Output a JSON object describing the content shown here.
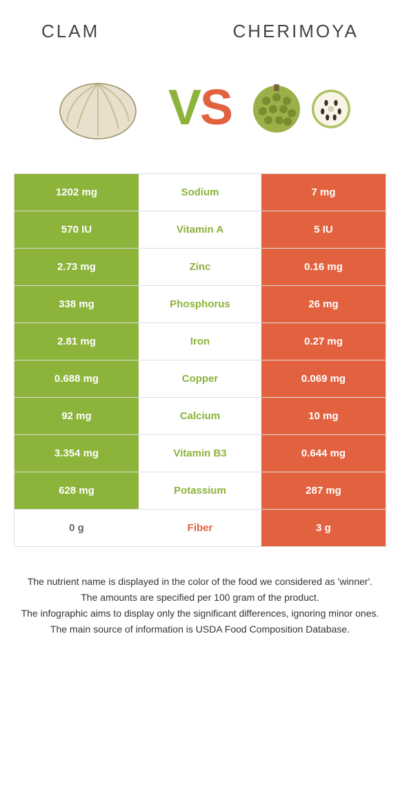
{
  "titles": {
    "left": "CLAM",
    "right": "CHERIMOYA"
  },
  "vs": {
    "v": "V",
    "s": "S"
  },
  "colors": {
    "left": "#8cb33a",
    "right": "#e2623f",
    "neutral_text": "#666"
  },
  "rows": [
    {
      "nutrient": "Sodium",
      "left": "1202 mg",
      "right": "7 mg",
      "winner": "left"
    },
    {
      "nutrient": "Vitamin A",
      "left": "570 IU",
      "right": "5 IU",
      "winner": "left"
    },
    {
      "nutrient": "Zinc",
      "left": "2.73 mg",
      "right": "0.16 mg",
      "winner": "left"
    },
    {
      "nutrient": "Phosphorus",
      "left": "338 mg",
      "right": "26 mg",
      "winner": "left"
    },
    {
      "nutrient": "Iron",
      "left": "2.81 mg",
      "right": "0.27 mg",
      "winner": "left"
    },
    {
      "nutrient": "Copper",
      "left": "0.688 mg",
      "right": "0.069 mg",
      "winner": "left"
    },
    {
      "nutrient": "Calcium",
      "left": "92 mg",
      "right": "10 mg",
      "winner": "left"
    },
    {
      "nutrient": "Vitamin B3",
      "left": "3.354 mg",
      "right": "0.644 mg",
      "winner": "left"
    },
    {
      "nutrient": "Potassium",
      "left": "628 mg",
      "right": "287 mg",
      "winner": "left"
    },
    {
      "nutrient": "Fiber",
      "left": "0 g",
      "right": "3 g",
      "winner": "right"
    }
  ],
  "footer": [
    "The nutrient name is displayed in the color of the food we considered as 'winner'.",
    "The amounts are specified per 100 gram of the product.",
    "The infographic aims to display only the significant differences, ignoring minor ones.",
    "The main source of information is USDA Food Composition Database."
  ]
}
